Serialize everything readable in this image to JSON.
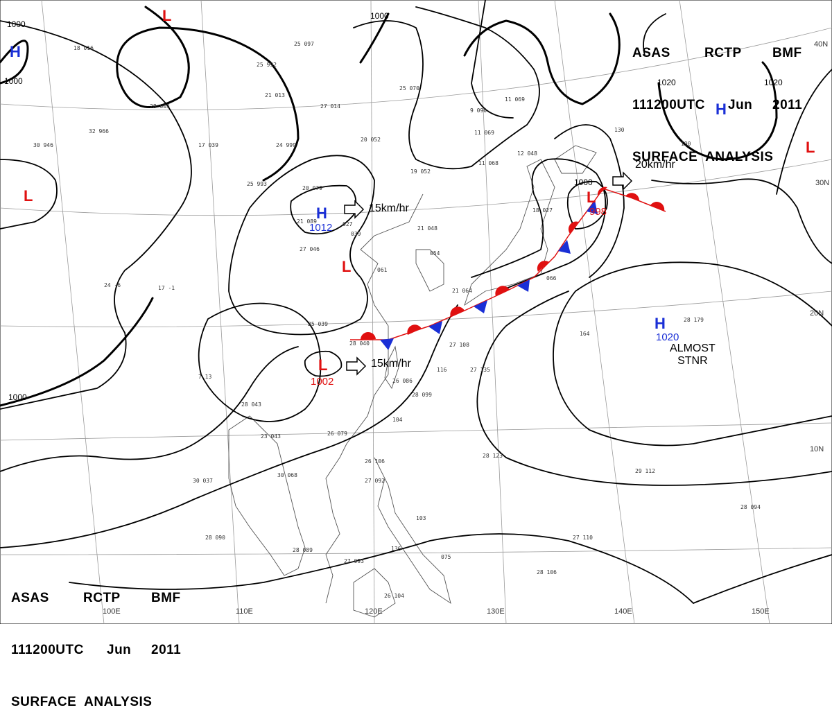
{
  "header": {
    "line1": [
      "ASAS",
      "RCTP",
      "BMF"
    ],
    "line2": [
      "111200UTC",
      "Jun",
      "2011"
    ],
    "line3": "SURFACE  ANALYSIS"
  },
  "colors": {
    "high": "#1a2fd6",
    "low": "#e01010",
    "isobar": "#000000",
    "grid": "#9a9a9a",
    "coast": "#555555"
  },
  "isobar_labels": [
    "1000",
    "1000",
    "1000",
    "1000",
    "1020",
    "1020",
    "1000"
  ],
  "grid_labels": {
    "lat": [
      "40N",
      "30N",
      "20N",
      "10N"
    ],
    "lon": [
      "100E",
      "110E",
      "120E",
      "130E",
      "140E",
      "150E"
    ]
  },
  "pressure_systems": [
    {
      "type": "L",
      "pressure": ""
    },
    {
      "type": "H",
      "pressure": ""
    },
    {
      "type": "L",
      "pressure": ""
    },
    {
      "type": "H",
      "pressure": "1012"
    },
    {
      "type": "L",
      "pressure": ""
    },
    {
      "type": "L",
      "pressure": "1002"
    },
    {
      "type": "L",
      "pressure": "998"
    },
    {
      "type": "H",
      "pressure": ""
    },
    {
      "type": "L",
      "pressure": ""
    },
    {
      "type": "H",
      "pressure": "1020"
    }
  ],
  "motions": [
    "15km/hr",
    "15km/hr",
    "20km/hr"
  ],
  "notes": {
    "stationary": [
      "ALMOST",
      "STNR"
    ]
  },
  "stations": [
    "18 016",
    "25 992",
    "25 097",
    "21 013",
    "28 003",
    "27 014",
    "25 070",
    "32 966",
    "30 946",
    "17 039",
    "24 999",
    "20 052",
    "19 052",
    "11 069",
    "11 068",
    "9 090",
    "11 069",
    "12 048",
    "130",
    "190",
    "25 993",
    "20 079",
    "21 089",
    "027",
    "039",
    "21 048",
    "18 027",
    "27 046",
    "054",
    "061",
    "17 -1",
    "24 -6",
    "25 039",
    "28 040",
    "21 064",
    "066",
    "164",
    "28 179",
    "27 108",
    "116",
    "27 135",
    "26 086",
    "28 099",
    "104",
    "26 079",
    "7 13",
    "28 043",
    "23 043",
    "30 068",
    "30 037",
    "28 123",
    "29 112",
    "26 106",
    "27 092",
    "103",
    "28 089",
    "27 093",
    "136",
    "075",
    "27 110",
    "28 106",
    "26 104",
    "28 090",
    "28 094"
  ]
}
